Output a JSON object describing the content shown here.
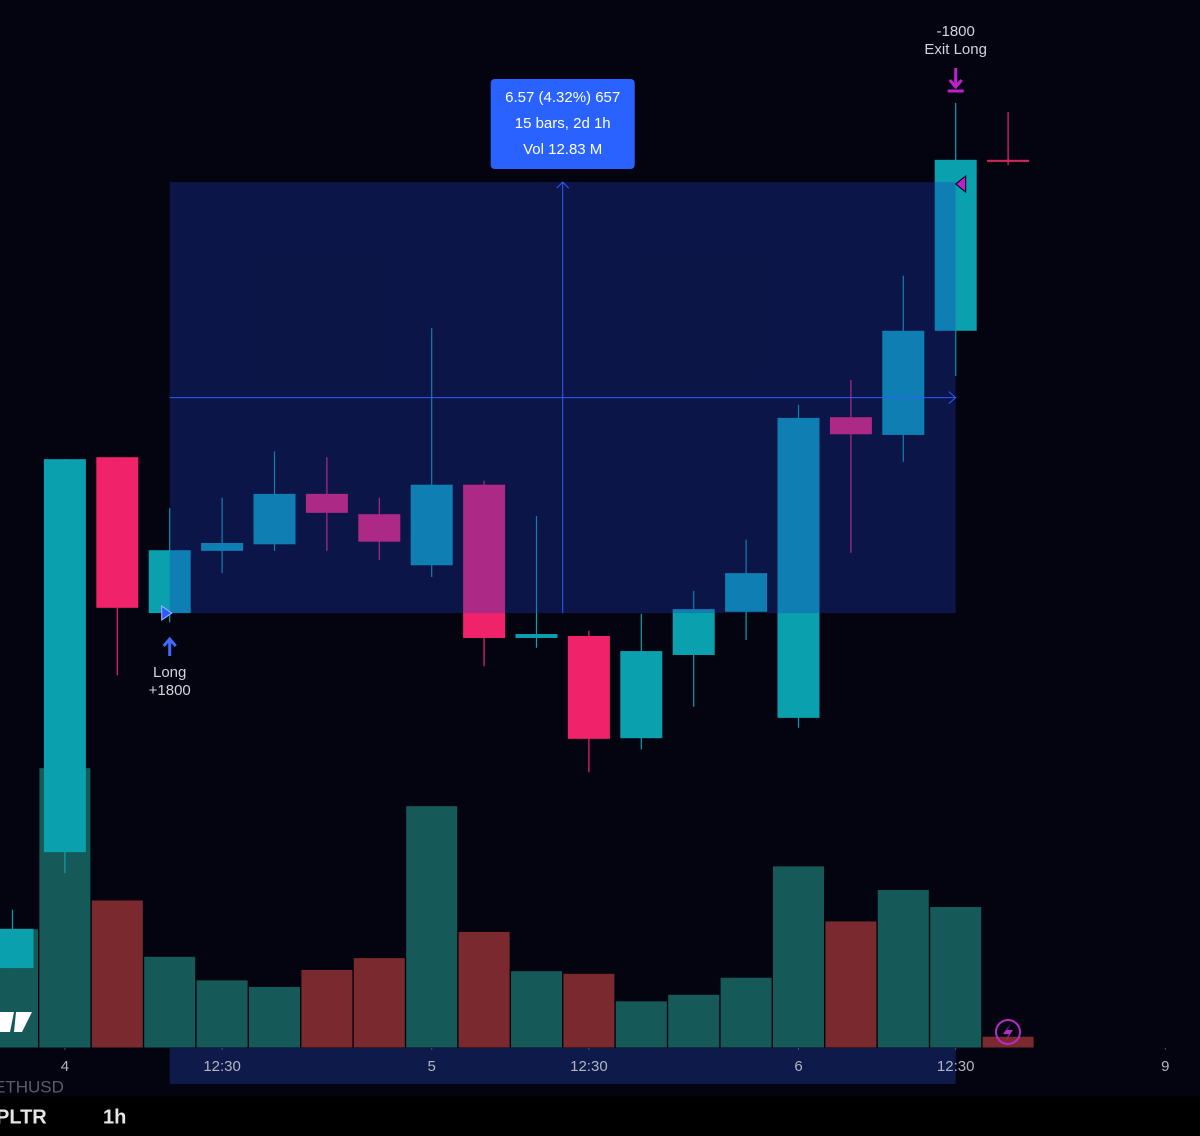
{
  "chart_data": {
    "type": "candlestick",
    "open": [
      146.72,
      148.49,
      154.52,
      152.14,
      153.09,
      153.19,
      153.96,
      153.65,
      152.87,
      154.1,
      151.76,
      151.79,
      150.23,
      151.5,
      152.16,
      150.54,
      155.13,
      154.86,
      156.45,
      159.06
    ],
    "high": [
      147.61,
      154.49,
      154.52,
      153.74,
      153.9,
      154.61,
      154.52,
      153.9,
      156.49,
      154.16,
      153.62,
      151.87,
      152.13,
      152.48,
      153.26,
      155.32,
      155.7,
      157.29,
      159.93,
      159.79
    ],
    "low": [
      146.72,
      148.17,
      151.19,
      152.0,
      152.75,
      153.09,
      153.09,
      152.95,
      152.69,
      151.33,
      151.61,
      149.71,
      150.06,
      150.71,
      151.73,
      150.39,
      153.06,
      154.45,
      155.76,
      158.98
    ],
    "close": [
      147.32,
      154.49,
      152.22,
      153.1,
      153.21,
      153.96,
      153.67,
      153.23,
      154.1,
      151.76,
      151.82,
      150.22,
      151.56,
      152.2,
      152.75,
      155.12,
      154.87,
      156.45,
      159.06,
      159.05
    ],
    "volume": [
      0.91,
      2.14,
      1.13,
      0.7,
      0.52,
      0.47,
      0.6,
      0.69,
      1.85,
      0.89,
      0.59,
      0.57,
      0.36,
      0.41,
      0.54,
      1.39,
      0.97,
      1.21,
      1.08,
      0.09
    ],
    "up_color": "#0aa0ae",
    "down_color": "#f0226a",
    "volume_up_color": "#155a58",
    "volume_down_color": "#7a2a2e",
    "ylim": [
      145.5,
      161.5
    ],
    "volume_lim": [
      0,
      8
    ],
    "xticks": [
      {
        "value": 1,
        "label": "4"
      },
      {
        "value": 4,
        "label": "12:30"
      },
      {
        "value": 8,
        "label": "5"
      },
      {
        "value": 11,
        "label": "12:30"
      },
      {
        "value": 15,
        "label": "6"
      },
      {
        "value": 18,
        "label": "12:30"
      },
      {
        "value": 22,
        "label": "9"
      }
    ],
    "trades": [
      {
        "label": "Long",
        "qty": "+1800",
        "index": 3,
        "price": 152.14
      },
      {
        "label": "Exit Long",
        "qty": "-1800",
        "index": 18,
        "price": 158.69
      }
    ],
    "measure": {
      "from_index": 3,
      "to_index": 18,
      "from_price": 152.14,
      "to_price": 158.72,
      "lines": [
        "6.57 (4.32%) 657",
        "15 bars, 2d 1h",
        "Vol 12.83 M"
      ]
    },
    "symbol": "PLTR",
    "interval": "1h",
    "other_symbol": "ETHUSD"
  }
}
